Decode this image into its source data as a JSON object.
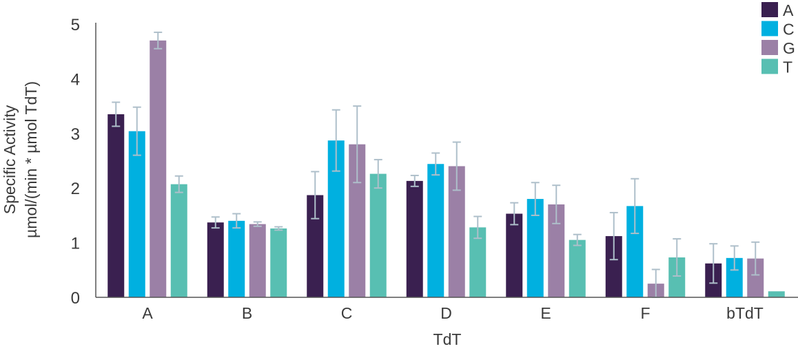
{
  "chart_data": {
    "type": "bar",
    "categories": [
      "A",
      "B",
      "C",
      "D",
      "E",
      "F",
      "bTdT"
    ],
    "series": [
      {
        "name": "A",
        "color": "#3a2050",
        "values": [
          3.35,
          1.37,
          1.87,
          2.13,
          1.53,
          1.12,
          0.62
        ],
        "errors": [
          0.22,
          0.1,
          0.43,
          0.1,
          0.2,
          0.43,
          0.36
        ]
      },
      {
        "name": "C",
        "color": "#00b0e0",
        "values": [
          3.04,
          1.4,
          2.87,
          2.44,
          1.8,
          1.67,
          0.72
        ],
        "errors": [
          0.44,
          0.13,
          0.56,
          0.2,
          0.3,
          0.5,
          0.22
        ]
      },
      {
        "name": "G",
        "color": "#9b80a6",
        "values": [
          4.7,
          1.34,
          2.8,
          2.4,
          1.7,
          0.25,
          0.71
        ],
        "errors": [
          0.15,
          0.04,
          0.7,
          0.44,
          0.35,
          0.26,
          0.3
        ]
      },
      {
        "name": "T",
        "color": "#58bfb2",
        "values": [
          2.07,
          1.26,
          2.26,
          1.28,
          1.05,
          0.73,
          0.11
        ],
        "errors": [
          0.15,
          0.03,
          0.26,
          0.2,
          0.1,
          0.34,
          0
        ]
      }
    ],
    "xlabel": "TdT",
    "ylabel": [
      "Specific Activity",
      "µmol/(min * µmol TdT)"
    ],
    "ylim": [
      0,
      5
    ],
    "yticks": [
      "0",
      "1",
      "2",
      "3",
      "4",
      "5"
    ],
    "grid": false,
    "legend": "top-right",
    "error_bar_color": "#aebfca"
  }
}
